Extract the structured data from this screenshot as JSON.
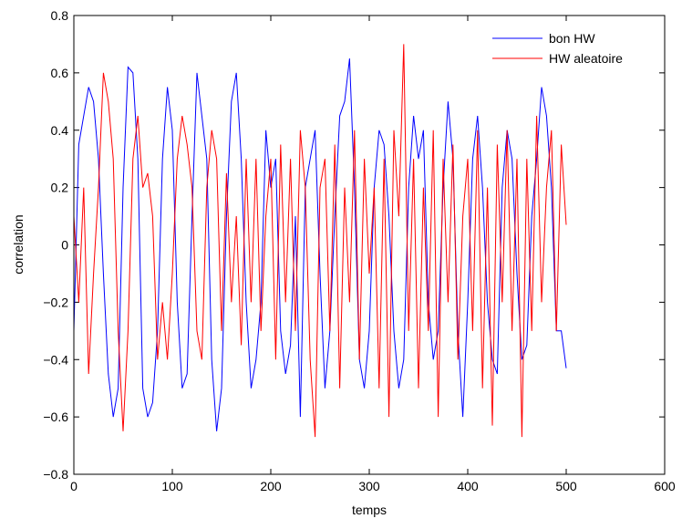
{
  "chart_data": {
    "type": "line",
    "xlabel": "temps",
    "ylabel": "correlation",
    "x": [
      0,
      5,
      10,
      15,
      20,
      25,
      30,
      35,
      40,
      45,
      50,
      55,
      60,
      65,
      70,
      75,
      80,
      85,
      90,
      95,
      100,
      105,
      110,
      115,
      120,
      125,
      130,
      135,
      140,
      145,
      150,
      155,
      160,
      165,
      170,
      175,
      180,
      185,
      190,
      195,
      200,
      205,
      210,
      215,
      220,
      225,
      230,
      235,
      240,
      245,
      250,
      255,
      260,
      265,
      270,
      275,
      280,
      285,
      290,
      295,
      300,
      305,
      310,
      315,
      320,
      325,
      330,
      335,
      340,
      345,
      350,
      355,
      360,
      365,
      370,
      375,
      380,
      385,
      390,
      395,
      400,
      405,
      410,
      415,
      420,
      425,
      430,
      435,
      440,
      445,
      450,
      455,
      460,
      465,
      470,
      475,
      480,
      485,
      490,
      495,
      500
    ],
    "series": [
      {
        "name": "bon HW",
        "color": "#0000ff",
        "values": [
          -0.3,
          0.35,
          0.45,
          0.55,
          0.5,
          0.3,
          -0.1,
          -0.45,
          -0.6,
          -0.5,
          0.2,
          0.62,
          0.6,
          0.3,
          -0.5,
          -0.6,
          -0.55,
          -0.3,
          0.3,
          0.55,
          0.4,
          -0.2,
          -0.5,
          -0.45,
          0.1,
          0.6,
          0.45,
          0.3,
          -0.4,
          -0.65,
          -0.5,
          0.1,
          0.5,
          0.6,
          0.3,
          -0.2,
          -0.5,
          -0.4,
          -0.2,
          0.4,
          0.2,
          0.3,
          -0.3,
          -0.45,
          -0.35,
          0.1,
          -0.6,
          0.2,
          0.3,
          0.4,
          -0.1,
          -0.5,
          -0.3,
          0.1,
          0.45,
          0.5,
          0.65,
          0.2,
          -0.4,
          -0.5,
          -0.3,
          0.2,
          0.4,
          0.35,
          0.1,
          -0.3,
          -0.5,
          -0.4,
          0.2,
          0.45,
          0.3,
          0.4,
          -0.2,
          -0.4,
          -0.3,
          0.2,
          0.5,
          0.3,
          -0.3,
          -0.6,
          -0.2,
          0.3,
          0.45,
          0.2,
          -0.2,
          -0.4,
          -0.45,
          0.2,
          0.4,
          0.3,
          -0.1,
          -0.4,
          -0.35,
          0.1,
          0.3,
          0.55,
          0.45,
          0.2,
          -0.3,
          -0.3,
          -0.43
        ]
      },
      {
        "name": "HW aleatoire",
        "color": "#ff0000",
        "values": [
          0.1,
          -0.2,
          0.2,
          -0.45,
          -0.1,
          0.2,
          0.6,
          0.5,
          0.3,
          -0.3,
          -0.65,
          -0.3,
          0.3,
          0.45,
          0.2,
          0.25,
          0.1,
          -0.4,
          -0.2,
          -0.4,
          -0.1,
          0.3,
          0.45,
          0.35,
          0.2,
          -0.3,
          -0.4,
          0.2,
          0.4,
          0.3,
          -0.3,
          0.25,
          -0.2,
          0.1,
          -0.35,
          0.3,
          -0.2,
          0.3,
          -0.3,
          0.1,
          0.3,
          -0.4,
          0.35,
          -0.2,
          0.3,
          -0.3,
          0.4,
          0.2,
          -0.4,
          -0.67,
          0.2,
          0.3,
          -0.3,
          0.35,
          -0.5,
          0.2,
          -0.2,
          0.4,
          -0.4,
          0.3,
          -0.1,
          0.2,
          -0.5,
          0.3,
          -0.6,
          0.4,
          0.1,
          0.7,
          -0.3,
          0.3,
          -0.5,
          0.2,
          -0.3,
          0.4,
          -0.6,
          0.3,
          -0.2,
          0.35,
          -0.4,
          0.1,
          0.3,
          -0.3,
          0.4,
          -0.5,
          0.2,
          -0.63,
          0.35,
          -0.2,
          0.4,
          -0.3,
          0.3,
          -0.67,
          0.3,
          -0.3,
          0.45,
          -0.2,
          0.2,
          0.4,
          -0.3,
          0.35,
          0.07
        ]
      }
    ],
    "xlim": [
      0,
      600
    ],
    "xticks": [
      0,
      100,
      200,
      300,
      400,
      500,
      600
    ],
    "ylim": [
      -0.8,
      0.8
    ],
    "yticks": [
      {
        "value": -0.8,
        "label": "−0.8"
      },
      {
        "value": -0.6,
        "label": "−0.6"
      },
      {
        "value": -0.4,
        "label": "−0.4"
      },
      {
        "value": -0.2,
        "label": "−0.2"
      },
      0,
      0.2,
      0.4,
      0.6,
      0.8
    ],
    "grid": false,
    "legend": "top-right"
  }
}
